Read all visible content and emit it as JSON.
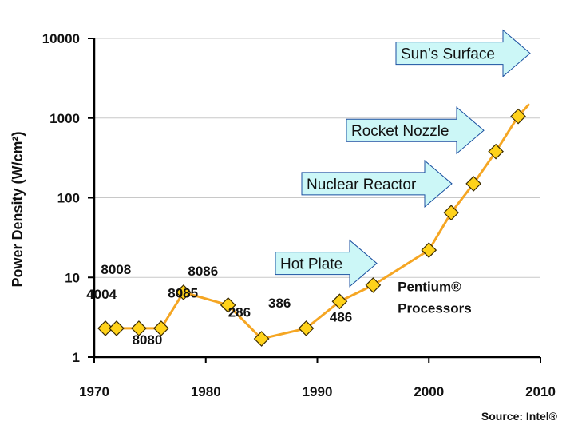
{
  "chart_data": {
    "type": "line",
    "scale_y": "log",
    "ylim": [
      1,
      10000
    ],
    "xlim": [
      1970,
      2010
    ],
    "ylabel": "Power Density (W/cm²)",
    "x_ticks": [
      "1970",
      "1980",
      "1990",
      "2000",
      "2010"
    ],
    "y_ticks": [
      "1",
      "10",
      "100",
      "1000",
      "10000"
    ],
    "grid": "horizontal",
    "line_color": "#f5a623",
    "marker_color": "#ffd21a",
    "series": [
      {
        "values": [
          {
            "x": 1971,
            "y": 2.3
          },
          {
            "x": 1972,
            "y": 2.3
          },
          {
            "x": 1974,
            "y": 2.3
          },
          {
            "x": 1976,
            "y": 2.3
          },
          {
            "x": 1978,
            "y": 6.5
          },
          {
            "x": 1982,
            "y": 4.5
          },
          {
            "x": 1985,
            "y": 1.7
          },
          {
            "x": 1989,
            "y": 2.3
          },
          {
            "x": 1992,
            "y": 5
          },
          {
            "x": 1995,
            "y": 8
          },
          {
            "x": 2000,
            "y": 22
          },
          {
            "x": 2002,
            "y": 65
          },
          {
            "x": 2004,
            "y": 150
          },
          {
            "x": 2006,
            "y": 380
          },
          {
            "x": 2008,
            "y": 1050
          }
        ]
      }
    ],
    "trend_end": {
      "x": 2009,
      "y": 1500
    },
    "annotations": [
      {
        "text": "8008",
        "x": 1970.6,
        "y": 11
      },
      {
        "text": "4004",
        "x": 1969.3,
        "y": 5.4
      },
      {
        "text": "8080",
        "x": 1973.4,
        "y": 1.45
      },
      {
        "text": "8085",
        "x": 1976.6,
        "y": 5.6
      },
      {
        "text": "8086",
        "x": 1978.4,
        "y": 10.5
      },
      {
        "text": "286",
        "x": 1982,
        "y": 3.2
      },
      {
        "text": "386",
        "x": 1985.6,
        "y": 4.2
      },
      {
        "text": "486",
        "x": 1991.1,
        "y": 2.8
      },
      {
        "text": "Pentium®",
        "x": 1997.2,
        "y": 6.7
      },
      {
        "text": "Processors",
        "x": 1997.2,
        "y": 3.6
      }
    ],
    "reference_labels": [
      {
        "text": "Hot Plate",
        "y": 15
      },
      {
        "text": "Nuclear Reactor",
        "y": 150
      },
      {
        "text": "Rocket Nozzle",
        "y": 700
      },
      {
        "text": "Sun’s Surface",
        "y": 6500
      }
    ],
    "source": "Source: Intel®"
  }
}
